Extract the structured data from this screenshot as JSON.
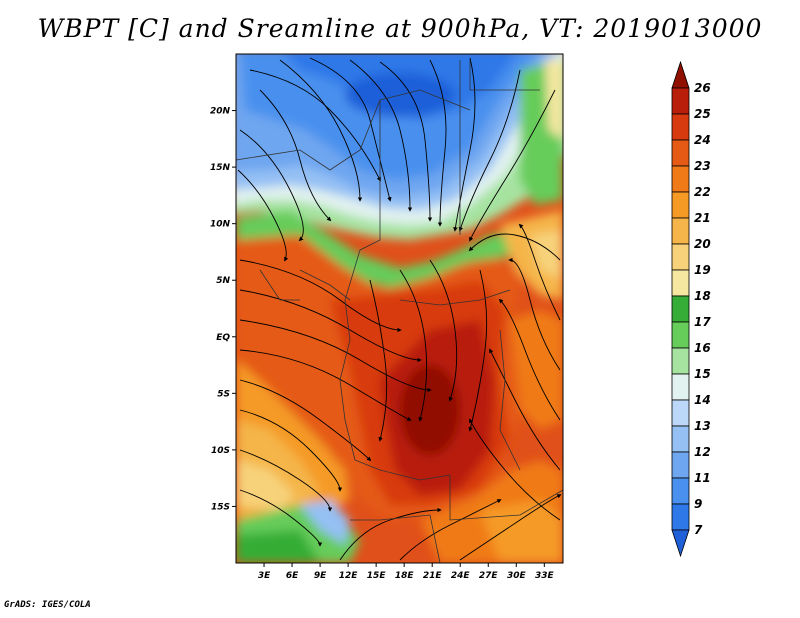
{
  "title": "WBPT [C] and Sreamline at 900hPa, VT: 2019013000",
  "footer": "GrADS: IGES/COLA",
  "lat_axis": {
    "labels": [
      "20N",
      "15N",
      "10N",
      "5N",
      "EQ",
      "5S",
      "10S",
      "15S"
    ],
    "values": [
      20,
      15,
      10,
      5,
      0,
      -5,
      -10,
      -15
    ],
    "range": [
      -20,
      25
    ]
  },
  "lon_axis": {
    "labels": [
      "3E",
      "6E",
      "9E",
      "12E",
      "15E",
      "18E",
      "21E",
      "24E",
      "27E",
      "30E",
      "33E"
    ],
    "values": [
      3,
      6,
      9,
      12,
      15,
      18,
      21,
      24,
      27,
      30,
      33
    ],
    "range": [
      0,
      35
    ]
  },
  "colorbar": {
    "labels": [
      "7",
      "9",
      "11",
      "12",
      "13",
      "14",
      "15",
      "16",
      "17",
      "18",
      "19",
      "20",
      "21",
      "22",
      "23",
      "24",
      "25",
      "26"
    ],
    "colors": [
      "#1f5fd8",
      "#2e78e8",
      "#4a90ee",
      "#6ea6f0",
      "#94c0f4",
      "#bcd8f8",
      "#e2f2f0",
      "#a6e3a0",
      "#66cc5a",
      "#36ad36",
      "#f5e6a0",
      "#f7d27a",
      "#f5b54a",
      "#f59a25",
      "#f07a18",
      "#e55a14",
      "#d83a10",
      "#b81e0a",
      "#901000"
    ]
  }
}
